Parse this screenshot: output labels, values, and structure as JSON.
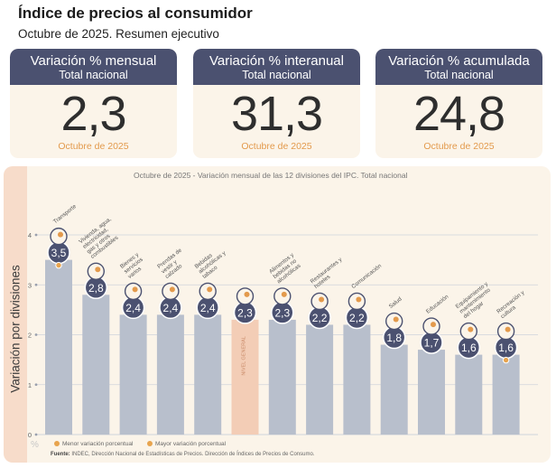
{
  "header": {
    "title": "Índice de precios al consumidor",
    "subtitle": "Octubre de 2025. Resumen ejecutivo"
  },
  "cards": [
    {
      "title": "Variación % mensual",
      "scope": "Total nacional",
      "value": "2,3",
      "period": "Octubre de 2025"
    },
    {
      "title": "Variación % interanual",
      "scope": "Total nacional",
      "value": "31,3",
      "period": "Octubre de 2025"
    },
    {
      "title": "Variación % acumulada",
      "scope": "Total nacional",
      "value": "24,8",
      "period": "Octubre de 2025"
    }
  ],
  "chart_data": {
    "type": "bar",
    "title": "Octubre de 2025 - Variación mensual de las 12 divisiones del IPC. Total nacional",
    "ylabel": "Variación por divisiones",
    "yunit": "%",
    "ylim": [
      0,
      4
    ],
    "yticks": [
      "0",
      "1",
      "2",
      "3",
      "4"
    ],
    "categories": [
      "Transporte",
      "Vivienda, agua, electricidad, gas y otros combustibles",
      "Bienes y servicios varios",
      "Prendas de vestir y calzado",
      "Bebidas alcohólicas y tabaco",
      "NIVEL GENERAL",
      "Alimentos y bebidas no alcohólicas",
      "Restaurantes y hoteles",
      "Comunicación",
      "Salud",
      "Educación",
      "Equipamiento y mantenimiento del hogar",
      "Recreación y cultura"
    ],
    "values": [
      3.5,
      2.8,
      2.4,
      2.4,
      2.4,
      2.3,
      2.3,
      2.2,
      2.2,
      1.8,
      1.7,
      1.6,
      1.6
    ],
    "value_labels": [
      "3,5",
      "2,8",
      "2,4",
      "2,4",
      "2,4",
      "2,3",
      "2,3",
      "2,2",
      "2,2",
      "1,8",
      "1,7",
      "1,6",
      "1,6"
    ],
    "bar_color": "#b8bfcc",
    "highlight_color": "#f3cdb6",
    "highlight_label": "NIVEL GENERAL",
    "marker_max_index": 0,
    "marker_min_index": 12,
    "legend": [
      {
        "label": "Menor variación porcentual",
        "color": "#e8a44e"
      },
      {
        "label": "Mayor variación porcentual",
        "color": "#e8a44e"
      }
    ]
  },
  "footer": {
    "source_label": "Fuente:",
    "source_text": "INDEC, Dirección Nacional de Estadísticas de Precios. Dirección de Índices de Precios de Consumo."
  },
  "colors": {
    "navy": "#4b5170",
    "cream": "#fbf4e9",
    "peach": "#f7dcca",
    "orange": "#e39a4c"
  }
}
